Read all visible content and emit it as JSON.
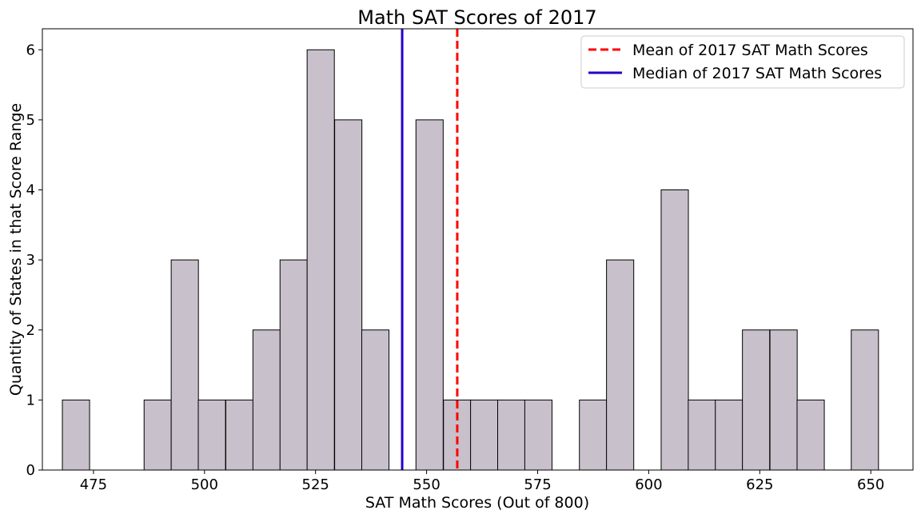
{
  "chart_data": {
    "type": "bar",
    "title": "Math SAT Scores of 2017",
    "xlabel": "SAT Math Scores (Out of 800)",
    "ylabel": "Quantity of States in that Score Range",
    "xlim": [
      463.5,
      659.5
    ],
    "ylim": [
      0,
      6.3
    ],
    "xticks": [
      475,
      500,
      525,
      550,
      575,
      600,
      625,
      650
    ],
    "yticks": [
      0,
      1,
      2,
      3,
      4,
      5,
      6
    ],
    "bin_width": 6.13,
    "bins": [
      {
        "x0": 468.0,
        "count": 1
      },
      {
        "x0": 474.1,
        "count": 0
      },
      {
        "x0": 480.3,
        "count": 0
      },
      {
        "x0": 486.4,
        "count": 1
      },
      {
        "x0": 492.5,
        "count": 3
      },
      {
        "x0": 498.6,
        "count": 1
      },
      {
        "x0": 504.8,
        "count": 1
      },
      {
        "x0": 510.9,
        "count": 2
      },
      {
        "x0": 517.0,
        "count": 3
      },
      {
        "x0": 523.1,
        "count": 6
      },
      {
        "x0": 529.3,
        "count": 5
      },
      {
        "x0": 535.4,
        "count": 2
      },
      {
        "x0": 541.5,
        "count": 0
      },
      {
        "x0": 547.6,
        "count": 5
      },
      {
        "x0": 553.8,
        "count": 1
      },
      {
        "x0": 559.9,
        "count": 1
      },
      {
        "x0": 566.0,
        "count": 1
      },
      {
        "x0": 572.1,
        "count": 1
      },
      {
        "x0": 578.3,
        "count": 0
      },
      {
        "x0": 584.4,
        "count": 1
      },
      {
        "x0": 590.5,
        "count": 3
      },
      {
        "x0": 596.6,
        "count": 0
      },
      {
        "x0": 602.8,
        "count": 4
      },
      {
        "x0": 608.9,
        "count": 1
      },
      {
        "x0": 615.0,
        "count": 1
      },
      {
        "x0": 621.1,
        "count": 2
      },
      {
        "x0": 627.3,
        "count": 2
      },
      {
        "x0": 633.4,
        "count": 1
      },
      {
        "x0": 639.5,
        "count": 0
      },
      {
        "x0": 645.6,
        "count": 2
      }
    ],
    "bar_color": "#c8c0ca",
    "bar_edge_color": "#000000",
    "reference_lines": [
      {
        "name": "Mean of 2017 SAT Math Scores",
        "x": 556.9,
        "color": "#ff0000",
        "style": "dashed"
      },
      {
        "name": "Median of 2017 SAT Math Scores",
        "x": 544.5,
        "color": "#2200cc",
        "style": "solid"
      }
    ],
    "legend_position": "top-right",
    "grid": false
  }
}
